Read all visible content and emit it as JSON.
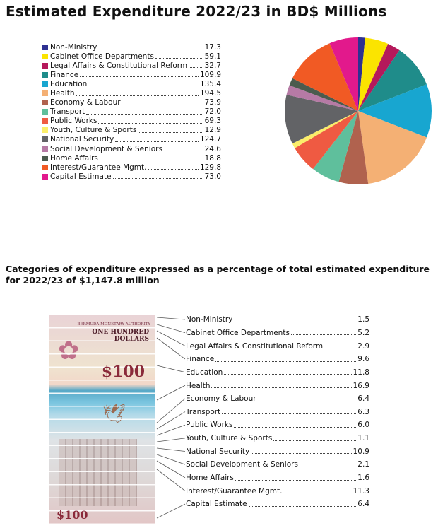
{
  "title": "Estimated Expenditure 2022/23 in BD$ Millions",
  "subtitle": "Categories of expenditure expressed as a percentage of total estimated expenditure for 2022/23 of $1,147.8 million",
  "banknote": {
    "issuer": "BERMUDA MONETARY AUTHORITY",
    "denomination": "ONE HUNDRED DOLLARS",
    "amount": "$100"
  },
  "chart_data": [
    {
      "type": "pie",
      "title": "Estimated Expenditure 2022/23 in BD$ Millions",
      "legend": "left",
      "categories": [
        "Non-Ministry",
        "Cabinet Office Departments",
        "Legal Affairs & Constitutional Reform",
        "Finance",
        "Education",
        "Health",
        "Economy & Labour",
        "Transport",
        "Public Works",
        "Youth, Culture & Sports",
        "National Security",
        "Social Development & Seniors",
        "Home Affairs",
        "Interest/Guarantee Mgmt.",
        "Capital Estimate"
      ],
      "values": [
        17.3,
        59.1,
        32.7,
        109.9,
        135.4,
        194.5,
        73.9,
        72.0,
        69.3,
        12.9,
        124.7,
        24.6,
        18.8,
        129.8,
        73.0
      ],
      "labels": [
        "17.3",
        "59.1",
        "32.7",
        "109.9",
        "135.4",
        "194.5",
        "73.9",
        "72.0",
        "69.3",
        "12.9",
        "124.7",
        "24.6",
        "18.8",
        "129.8",
        "73.0"
      ],
      "colors": [
        "#2e3192",
        "#fbe400",
        "#b5195b",
        "#1f8c8a",
        "#18a6d0",
        "#f4b074",
        "#b0624e",
        "#5fbf9c",
        "#ef5a42",
        "#fbee6a",
        "#626366",
        "#b67aa5",
        "#4b5b4e",
        "#f15a24",
        "#e2198c"
      ]
    },
    {
      "type": "table",
      "title": "Categories of expenditure expressed as a percentage of total estimated expenditure for 2022/23 of $1,147.8 million",
      "categories": [
        "Non-Ministry",
        "Cabinet Office Departments",
        "Legal Affairs & Constitutional Reform",
        "Finance",
        "Education",
        "Health",
        "Economy & Labour",
        "Transport",
        "Public Works",
        "Youth, Culture & Sports",
        "National Security",
        "Social Development & Seniors",
        "Home Affairs",
        "Interest/Guarantee Mgmt.",
        "Capital Estimate"
      ],
      "values": [
        1.5,
        5.2,
        2.9,
        9.6,
        11.8,
        16.9,
        6.4,
        6.3,
        6.0,
        1.1,
        10.9,
        2.1,
        1.6,
        11.3,
        6.4
      ],
      "labels": [
        "1.5",
        "5.2",
        "2.9",
        "9.6",
        "11.8",
        "16.9",
        "6.4",
        "6.3",
        "6.0",
        "1.1",
        "10.9",
        "2.1",
        "1.6",
        "11.3",
        "6.4"
      ]
    }
  ]
}
